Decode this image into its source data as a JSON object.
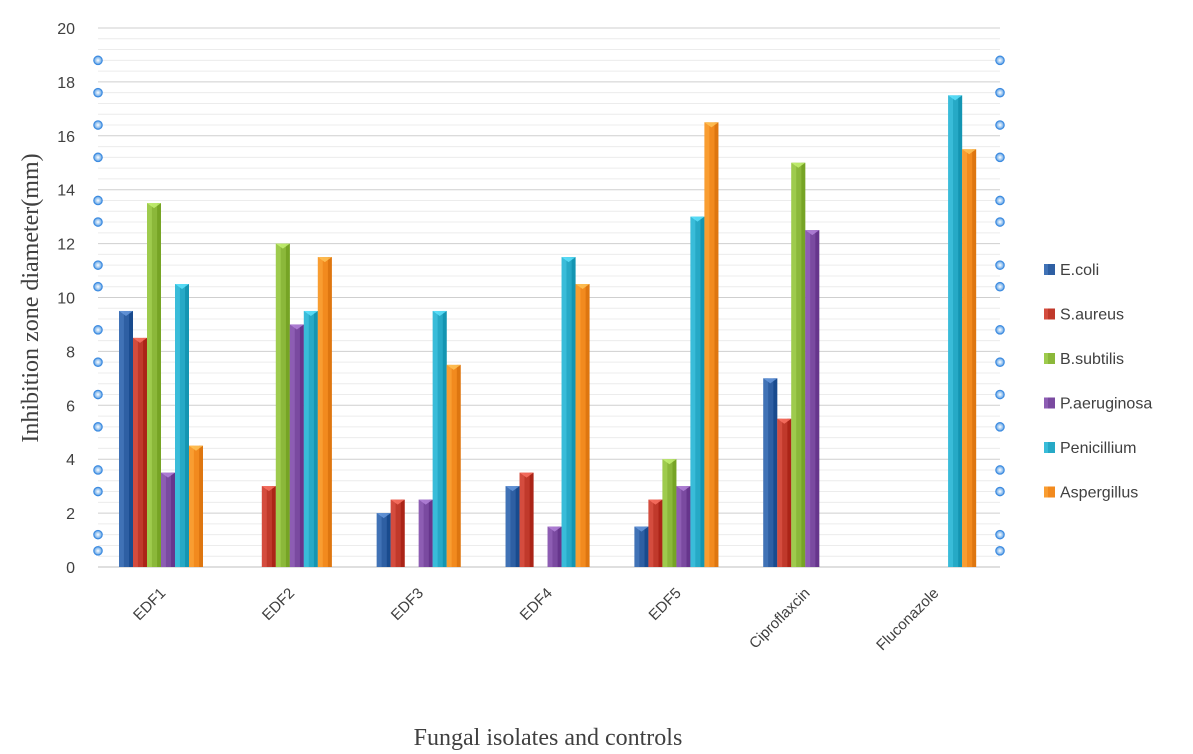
{
  "chart_data": {
    "type": "bar",
    "title": "",
    "xlabel": "Fungal isolates and controls",
    "ylabel": "Inhibition zone diameter(mm)",
    "ylim": [
      0,
      20
    ],
    "yticks": [
      0,
      2,
      4,
      6,
      8,
      10,
      12,
      14,
      16,
      18,
      20
    ],
    "grid": true,
    "legend_position": "right",
    "categories": [
      "EDF1",
      "EDF2",
      "EDF3",
      "EDF4",
      "EDF5",
      "Ciproflaxcin",
      "Fluconazole"
    ],
    "series": [
      {
        "name": "E.coli",
        "color": "#2e5fa3",
        "values": [
          9.5,
          0,
          2,
          3,
          1.5,
          7,
          0
        ]
      },
      {
        "name": "S.aureus",
        "color": "#c0392b",
        "values": [
          8.5,
          3,
          2.5,
          3.5,
          2.5,
          5.5,
          0
        ]
      },
      {
        "name": "B.subtilis",
        "color": "#8bb83a",
        "values": [
          13.5,
          12,
          0,
          0,
          4,
          15,
          0
        ]
      },
      {
        "name": "P.aeruginosa",
        "color": "#7a4aa0",
        "values": [
          3.5,
          9,
          2.5,
          1.5,
          3,
          12.5,
          0
        ]
      },
      {
        "name": "Penicillium",
        "color": "#26a9c6",
        "values": [
          10.5,
          9.5,
          9.5,
          11.5,
          13,
          0,
          17.5
        ]
      },
      {
        "name": "Aspergillus",
        "color": "#f28a1e",
        "values": [
          4.5,
          11.5,
          7.5,
          10.5,
          16.5,
          0,
          15.5
        ]
      }
    ]
  }
}
